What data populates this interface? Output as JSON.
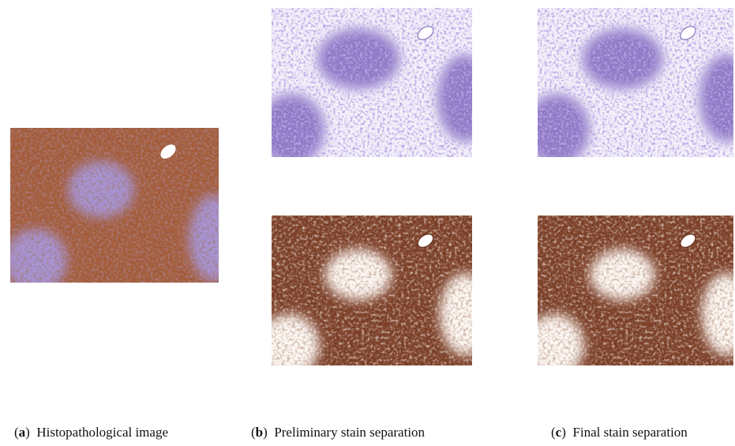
{
  "label_open": "(",
  "label_close": ")",
  "panels": [
    {
      "label": "a",
      "caption": "Histopathological image"
    },
    {
      "label": "b",
      "caption": "Preliminary stain separation"
    },
    {
      "label": "c",
      "caption": "Final stain separation"
    }
  ]
}
